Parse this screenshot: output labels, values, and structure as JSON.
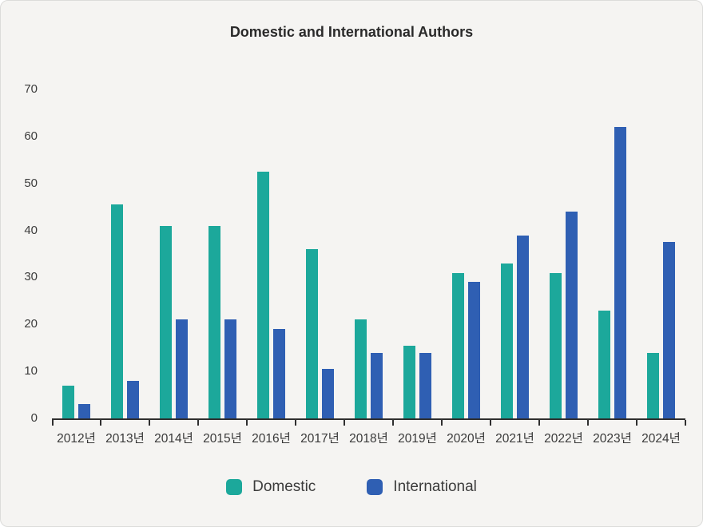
{
  "title": "Domestic and International Authors",
  "chart_data": {
    "type": "bar",
    "title": "Domestic and International Authors",
    "categories": [
      "2012년",
      "2013년",
      "2014년",
      "2015년",
      "2016년",
      "2017년",
      "2018년",
      "2019년",
      "2020년",
      "2021년",
      "2022년",
      "2023년",
      "2024년"
    ],
    "series": [
      {
        "name": "Domestic",
        "color": "#1CA89B",
        "values": [
          7,
          45.5,
          41,
          41,
          52.5,
          36,
          21,
          15.5,
          31,
          33,
          31,
          23,
          14
        ]
      },
      {
        "name": "International",
        "color": "#2F5FB3",
        "values": [
          3,
          8,
          21,
          21,
          19,
          10.5,
          14,
          14,
          29,
          39,
          44,
          62,
          37.5
        ]
      }
    ],
    "xlabel": "",
    "ylabel": "",
    "ylim": [
      0,
      70
    ],
    "yticks": [
      "0",
      "10",
      "20",
      "30",
      "40",
      "50",
      "60",
      "70"
    ],
    "grid": false,
    "legend_position": "bottom"
  },
  "colors": {
    "background": "#F5F4F2",
    "card_border": "#DCDCDA",
    "axis": "#2F2F2F",
    "tick_text": "#3C3C3C",
    "title_text": "#2A2A2A",
    "domestic": "#1CA89B",
    "international": "#2F5FB3"
  }
}
